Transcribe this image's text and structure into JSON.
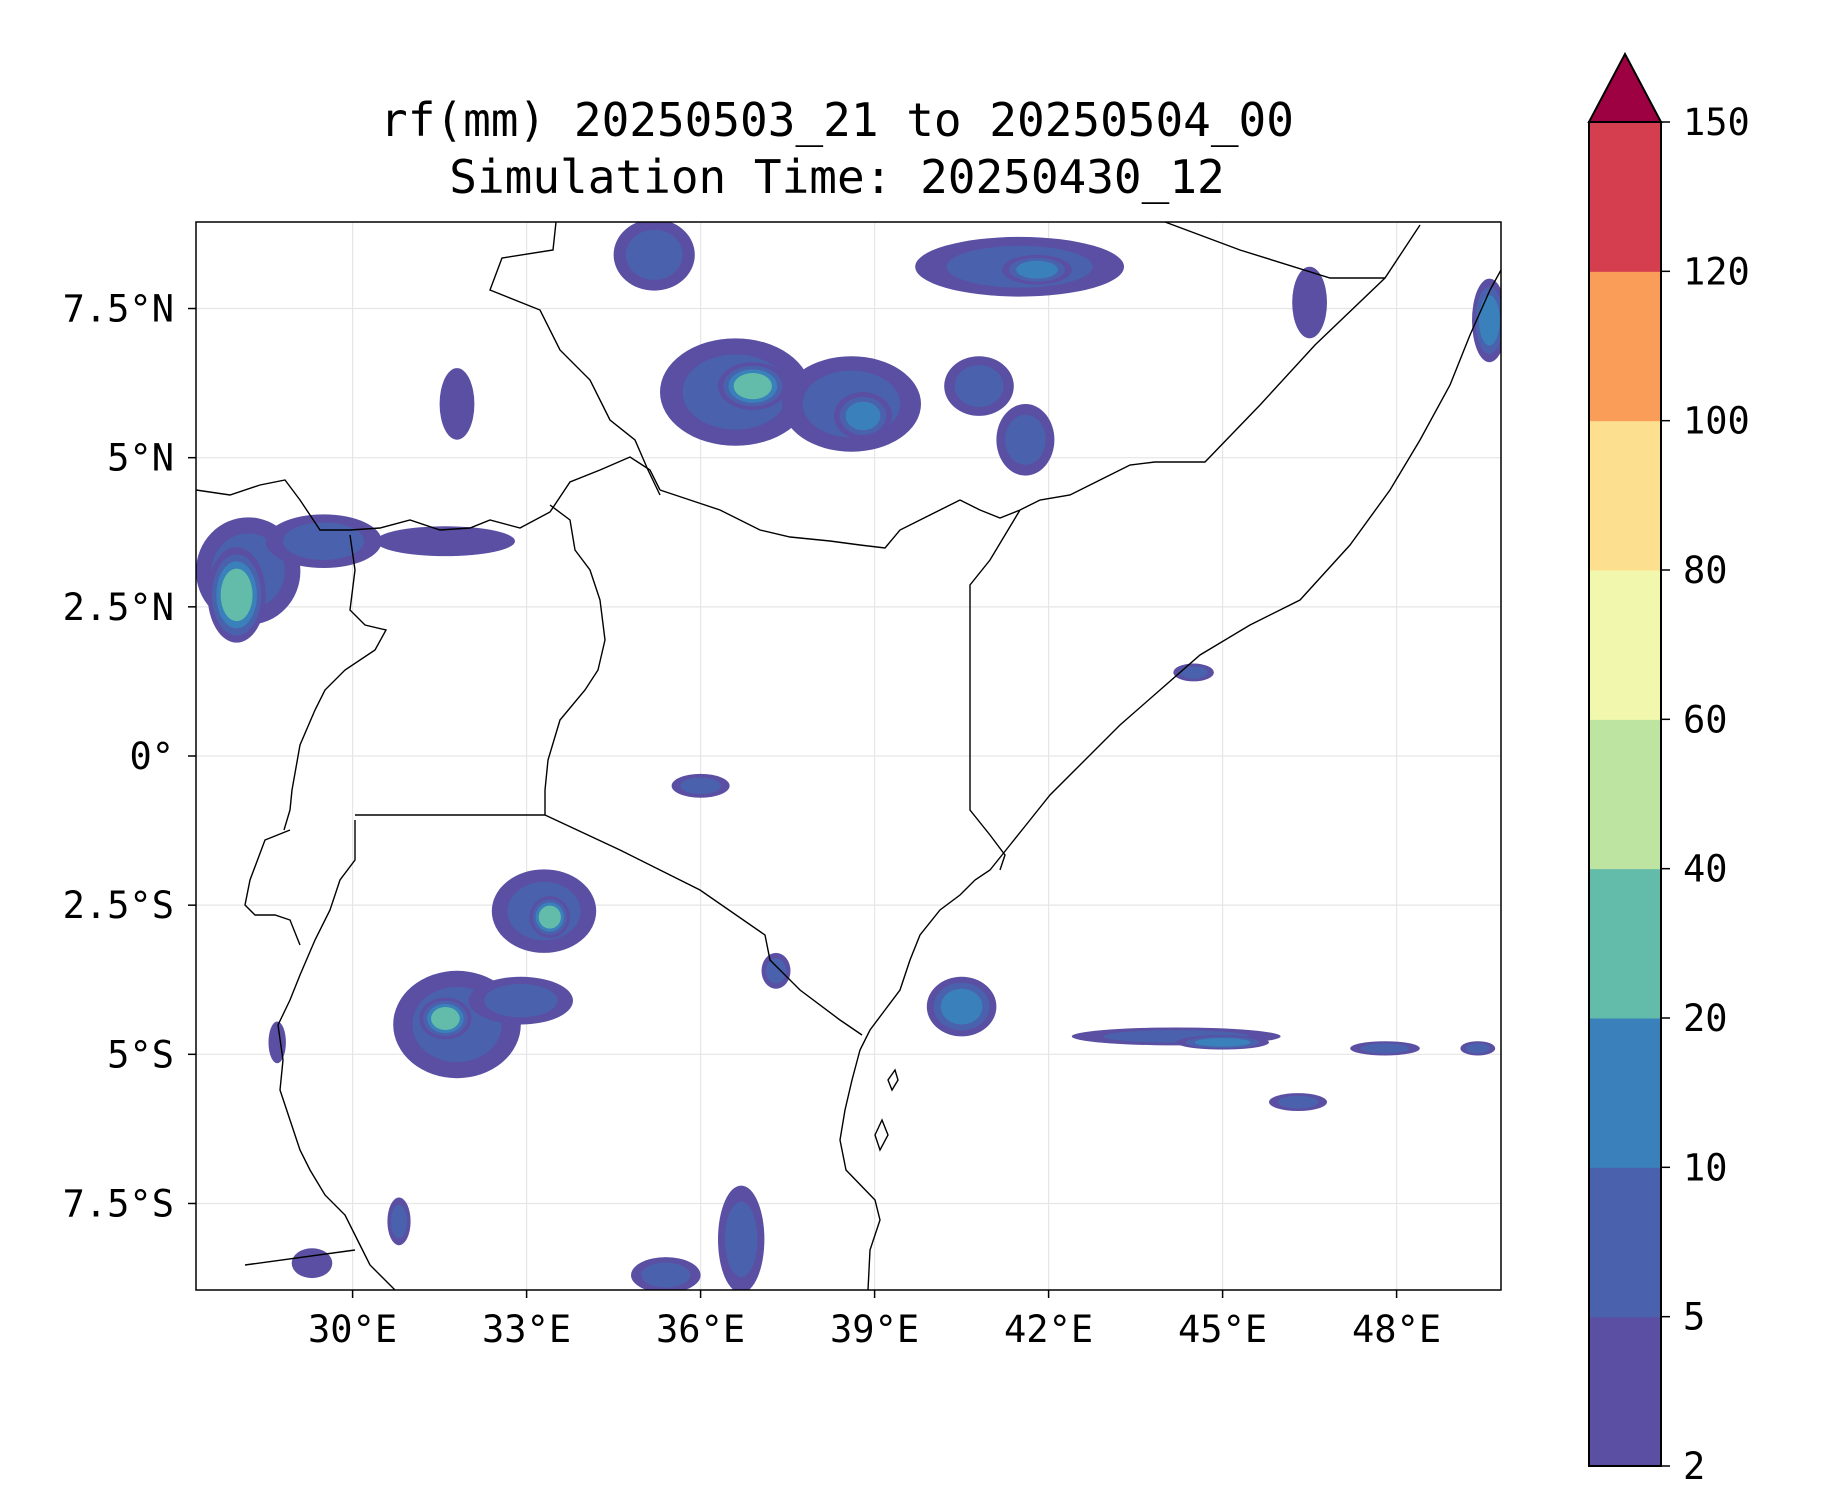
{
  "title": {
    "line1": "rf(mm) 20250503_21 to 20250504_00",
    "line2": "Simulation Time: 20250430_12"
  },
  "map": {
    "lon_range": [
      27.3,
      49.8
    ],
    "lat_range": [
      -8.95,
      8.95
    ],
    "lon_ticks": [
      {
        "value": 30,
        "label": "30°E"
      },
      {
        "value": 33,
        "label": "33°E"
      },
      {
        "value": 36,
        "label": "36°E"
      },
      {
        "value": 39,
        "label": "39°E"
      },
      {
        "value": 42,
        "label": "42°E"
      },
      {
        "value": 45,
        "label": "45°E"
      },
      {
        "value": 48,
        "label": "48°E"
      }
    ],
    "lat_ticks": [
      {
        "value": 7.5,
        "label": "7.5°N"
      },
      {
        "value": 5,
        "label": "5°N"
      },
      {
        "value": 2.5,
        "label": "2.5°N"
      },
      {
        "value": 0,
        "label": "0°"
      },
      {
        "value": -2.5,
        "label": "2.5°S"
      },
      {
        "value": -5,
        "label": "5°S"
      },
      {
        "value": -7.5,
        "label": "7.5°S"
      }
    ],
    "grid": true
  },
  "colorbar": {
    "levels": [
      "2",
      "5",
      "10",
      "20",
      "40",
      "60",
      "80",
      "100",
      "120",
      "150"
    ],
    "colors": [
      "#5a4fa2",
      "#4a62ad",
      "#3a80bb",
      "#62bca9",
      "#bde4a1",
      "#f2f7ae",
      "#fde08f",
      "#f99d59",
      "#d53e4f"
    ],
    "extend_color": "#9e0142",
    "extend": "max"
  },
  "rain_cells": [
    {
      "lon": 28.2,
      "lat": 3.1,
      "rx": 0.9,
      "ry": 0.9,
      "lvl": 1
    },
    {
      "lon": 28.0,
      "lat": 2.7,
      "rx": 0.5,
      "ry": 0.8,
      "lvl": 3
    },
    {
      "lon": 29.5,
      "lat": 3.6,
      "rx": 1.0,
      "ry": 0.45,
      "lvl": 1
    },
    {
      "lon": 31.6,
      "lat": 3.6,
      "rx": 1.2,
      "ry": 0.25,
      "lvl": 0
    },
    {
      "lon": 31.8,
      "lat": 5.9,
      "rx": 0.3,
      "ry": 0.6,
      "lvl": 0
    },
    {
      "lon": 35.2,
      "lat": 8.4,
      "rx": 0.7,
      "ry": 0.6,
      "lvl": 1
    },
    {
      "lon": 36.6,
      "lat": 6.1,
      "rx": 1.3,
      "ry": 0.9,
      "lvl": 1
    },
    {
      "lon": 36.9,
      "lat": 6.2,
      "rx": 0.6,
      "ry": 0.4,
      "lvl": 3
    },
    {
      "lon": 38.6,
      "lat": 5.9,
      "rx": 1.2,
      "ry": 0.8,
      "lvl": 1
    },
    {
      "lon": 38.8,
      "lat": 5.7,
      "rx": 0.5,
      "ry": 0.4,
      "lvl": 2
    },
    {
      "lon": 40.8,
      "lat": 6.2,
      "rx": 0.6,
      "ry": 0.5,
      "lvl": 1
    },
    {
      "lon": 41.6,
      "lat": 5.3,
      "rx": 0.5,
      "ry": 0.6,
      "lvl": 1
    },
    {
      "lon": 41.5,
      "lat": 8.2,
      "rx": 1.8,
      "ry": 0.5,
      "lvl": 1
    },
    {
      "lon": 41.8,
      "lat": 8.15,
      "rx": 0.6,
      "ry": 0.25,
      "lvl": 2
    },
    {
      "lon": 46.5,
      "lat": 7.6,
      "rx": 0.3,
      "ry": 0.6,
      "lvl": 0
    },
    {
      "lon": 49.6,
      "lat": 7.3,
      "rx": 0.3,
      "ry": 0.7,
      "lvl": 2
    },
    {
      "lon": 36.0,
      "lat": -0.5,
      "rx": 0.5,
      "ry": 0.2,
      "lvl": 1
    },
    {
      "lon": 33.3,
      "lat": -2.6,
      "rx": 0.9,
      "ry": 0.7,
      "lvl": 1
    },
    {
      "lon": 33.4,
      "lat": -2.7,
      "rx": 0.35,
      "ry": 0.35,
      "lvl": 3
    },
    {
      "lon": 31.8,
      "lat": -4.5,
      "rx": 1.1,
      "ry": 0.9,
      "lvl": 1
    },
    {
      "lon": 31.6,
      "lat": -4.4,
      "rx": 0.45,
      "ry": 0.35,
      "lvl": 3
    },
    {
      "lon": 32.9,
      "lat": -4.1,
      "rx": 0.9,
      "ry": 0.4,
      "lvl": 1
    },
    {
      "lon": 36.7,
      "lat": -8.1,
      "rx": 0.4,
      "ry": 0.9,
      "lvl": 1
    },
    {
      "lon": 35.4,
      "lat": -8.7,
      "rx": 0.6,
      "ry": 0.3,
      "lvl": 1
    },
    {
      "lon": 37.3,
      "lat": -3.6,
      "rx": 0.25,
      "ry": 0.3,
      "lvl": 1
    },
    {
      "lon": 30.8,
      "lat": -7.8,
      "rx": 0.2,
      "ry": 0.4,
      "lvl": 1
    },
    {
      "lon": 40.5,
      "lat": -4.2,
      "rx": 0.6,
      "ry": 0.5,
      "lvl": 2
    },
    {
      "lon": 44.2,
      "lat": -4.7,
      "rx": 1.8,
      "ry": 0.15,
      "lvl": 1
    },
    {
      "lon": 45.0,
      "lat": -4.8,
      "rx": 0.8,
      "ry": 0.12,
      "lvl": 2
    },
    {
      "lon": 47.8,
      "lat": -4.9,
      "rx": 0.6,
      "ry": 0.12,
      "lvl": 1
    },
    {
      "lon": 49.4,
      "lat": -4.9,
      "rx": 0.3,
      "ry": 0.12,
      "lvl": 1
    },
    {
      "lon": 46.3,
      "lat": -5.8,
      "rx": 0.5,
      "ry": 0.15,
      "lvl": 1
    },
    {
      "lon": 44.5,
      "lat": 1.4,
      "rx": 0.35,
      "ry": 0.15,
      "lvl": 1
    },
    {
      "lon": 28.7,
      "lat": -4.8,
      "rx": 0.15,
      "ry": 0.35,
      "lvl": 0
    },
    {
      "lon": 29.3,
      "lat": -8.5,
      "rx": 0.35,
      "ry": 0.25,
      "lvl": 0
    }
  ]
}
